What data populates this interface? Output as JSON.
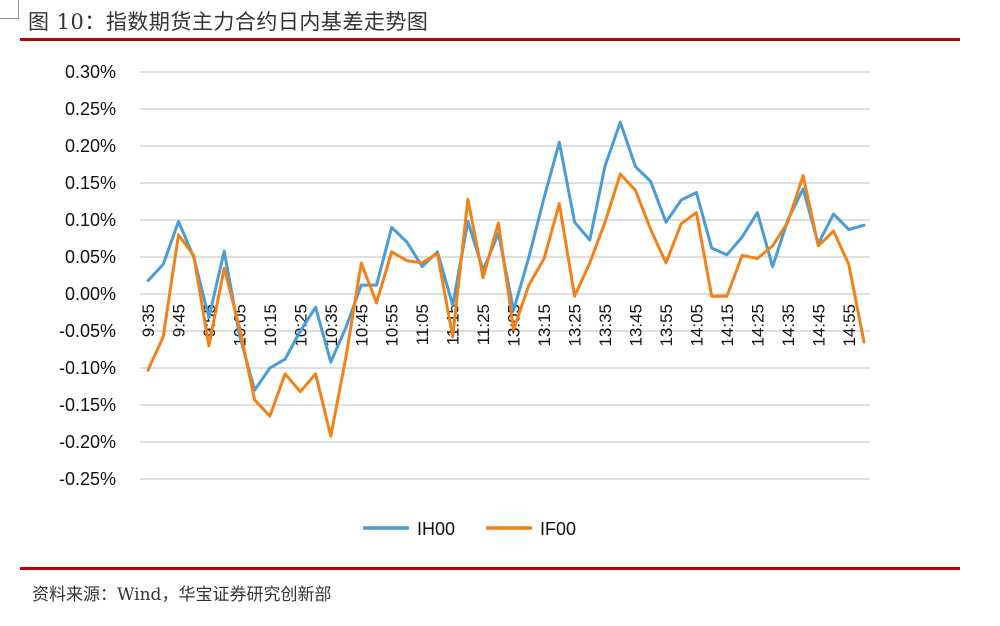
{
  "header": {
    "title": "图 10：指数期货主力合约日内基差走势图"
  },
  "footer": {
    "source": "资料来源：Wind，华宝证券研究创新部"
  },
  "colors": {
    "rule": "#c00000",
    "IH00": "#4a9cd6",
    "IF00": "#f28218",
    "grid": "#bfbfbf"
  },
  "chart_data": {
    "type": "line",
    "title": "",
    "xlabel": "",
    "ylabel": "",
    "ylim": [
      -0.0025,
      0.003
    ],
    "yticks": [
      "0.30%",
      "0.25%",
      "0.20%",
      "0.15%",
      "0.10%",
      "0.05%",
      "0.00%",
      "-0.05%",
      "-0.10%",
      "-0.15%",
      "-0.20%",
      "-0.25%"
    ],
    "ytick_values": [
      0.003,
      0.0025,
      0.002,
      0.0015,
      0.001,
      0.0005,
      0,
      -0.0005,
      -0.001,
      -0.0015,
      -0.002,
      -0.0025
    ],
    "x": [
      "9:35",
      "9:40",
      "9:45",
      "9:50",
      "9:55",
      "10:00",
      "10:05",
      "10:10",
      "10:15",
      "10:20",
      "10:25",
      "10:30",
      "10:35",
      "10:40",
      "10:45",
      "10:50",
      "10:55",
      "11:00",
      "11:05",
      "11:10",
      "11:15",
      "11:20",
      "11:25",
      "11:30",
      "13:05",
      "13:10",
      "13:15",
      "13:20",
      "13:25",
      "13:30",
      "13:35",
      "13:40",
      "13:45",
      "13:50",
      "13:55",
      "14:00",
      "14:05",
      "14:10",
      "14:15",
      "14:20",
      "14:25",
      "14:30",
      "14:35",
      "14:40",
      "14:45",
      "14:50",
      "14:55",
      "15:00"
    ],
    "xtick_labels": [
      "9:35",
      "9:45",
      "9:55",
      "10:05",
      "10:15",
      "10:25",
      "10:35",
      "10:45",
      "10:55",
      "11:05",
      "11:15",
      "11:25",
      "13:05",
      "13:15",
      "13:25",
      "13:35",
      "13:45",
      "13:55",
      "14:05",
      "14:15",
      "14:25",
      "14:35",
      "14:45",
      "14:55"
    ],
    "legend_position": "bottom",
    "grid": true,
    "series": [
      {
        "name": "IH00",
        "color": "#4a9cd6",
        "values": [
          0.00018,
          0.0004,
          0.00098,
          0.0005,
          -0.00032,
          0.00058,
          -0.00055,
          -0.0013,
          -0.001,
          -0.00088,
          -0.0005,
          -0.00018,
          -0.00092,
          -0.00045,
          0.00012,
          0.00012,
          0.0009,
          0.0007,
          0.00037,
          0.00057,
          -0.00015,
          0.00098,
          0.00032,
          0.00082,
          -0.00022,
          0.0005,
          0.0013,
          0.00205,
          0.00097,
          0.00073,
          0.00173,
          0.00232,
          0.00172,
          0.00152,
          0.00097,
          0.00127,
          0.00137,
          0.00062,
          0.00053,
          0.00077,
          0.0011,
          0.00037,
          0.001,
          0.00142,
          0.00068,
          0.00108,
          0.00087,
          0.00093
        ]
      },
      {
        "name": "IF00",
        "color": "#f28218",
        "values": [
          -0.00103,
          -0.00058,
          0.0008,
          0.00052,
          -0.0007,
          0.00035,
          -0.00045,
          -0.00143,
          -0.00165,
          -0.00108,
          -0.00132,
          -0.00108,
          -0.00192,
          -0.00085,
          0.00042,
          -0.00012,
          0.00057,
          0.00045,
          0.00042,
          0.00055,
          -0.00058,
          0.00128,
          0.00022,
          0.00096,
          -0.00048,
          0.00012,
          0.00048,
          0.00122,
          -3e-05,
          0.00042,
          0.00097,
          0.00162,
          0.0014,
          0.00087,
          0.00042,
          0.00095,
          0.0011,
          -3e-05,
          -3e-05,
          0.00052,
          0.00048,
          0.00065,
          0.00097,
          0.0016,
          0.00065,
          0.00085,
          0.0004,
          -0.00065
        ]
      }
    ]
  }
}
